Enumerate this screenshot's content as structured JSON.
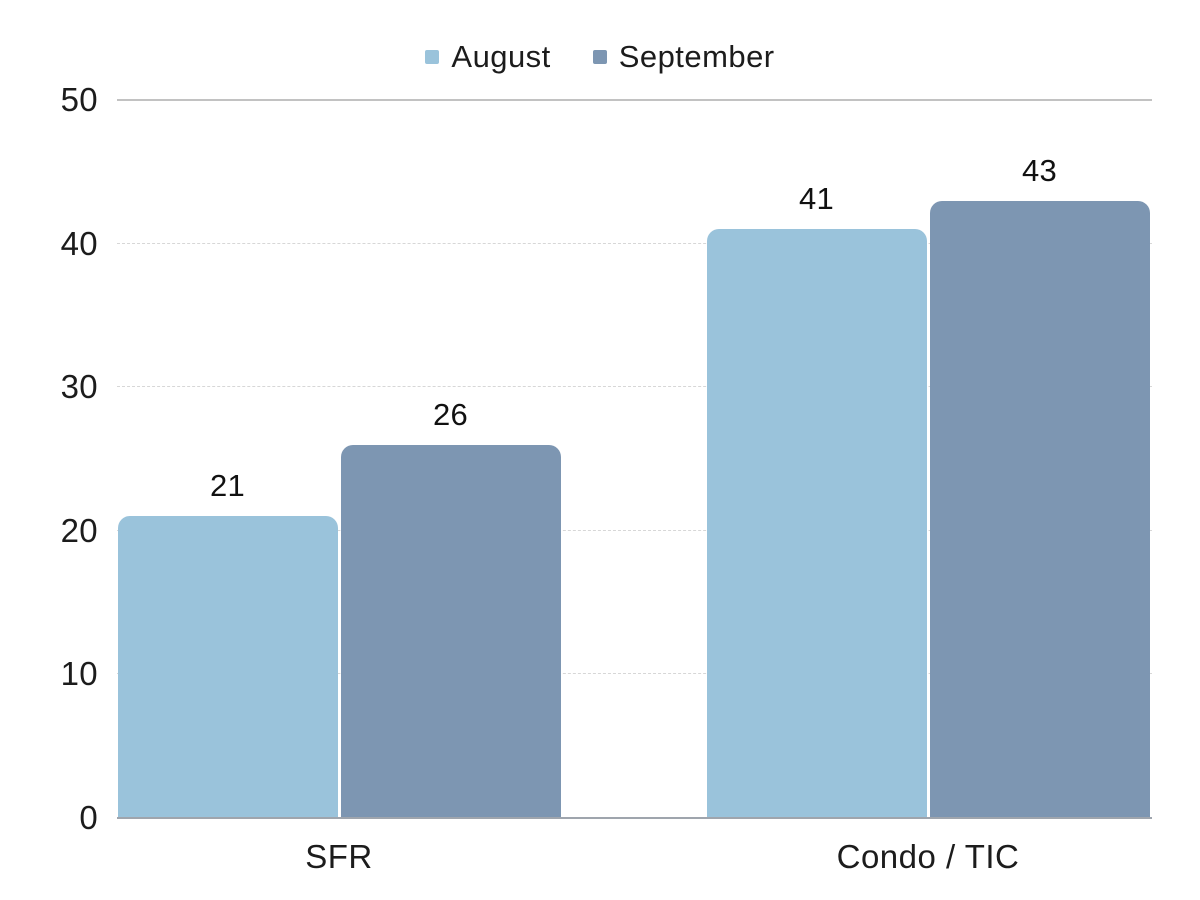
{
  "chart_data": {
    "type": "bar",
    "title": "",
    "xlabel": "",
    "ylabel": "",
    "categories": [
      "SFR",
      "Condo / TIC"
    ],
    "series": [
      {
        "name": "August",
        "color": "#9ac3db",
        "values": [
          21,
          41
        ]
      },
      {
        "name": "September",
        "color": "#7d96b2",
        "values": [
          26,
          43
        ]
      }
    ],
    "ylim": [
      0,
      50
    ],
    "yticks": [
      0,
      10,
      20,
      30,
      40,
      50
    ],
    "grid": "horizontal, dashed; solid line at top (50) and baseline (0)",
    "legend_position": "top-center",
    "data_labels": "above each bar"
  },
  "colors": {
    "background": "#ffffff",
    "bar_august": "#9ac3db",
    "bar_september": "#7d96b2",
    "grid_dashed": "#d7d7d7",
    "grid_top": "#c2c2c2",
    "axis_baseline": "#9fa5ad",
    "text": "#1c1c1c"
  }
}
